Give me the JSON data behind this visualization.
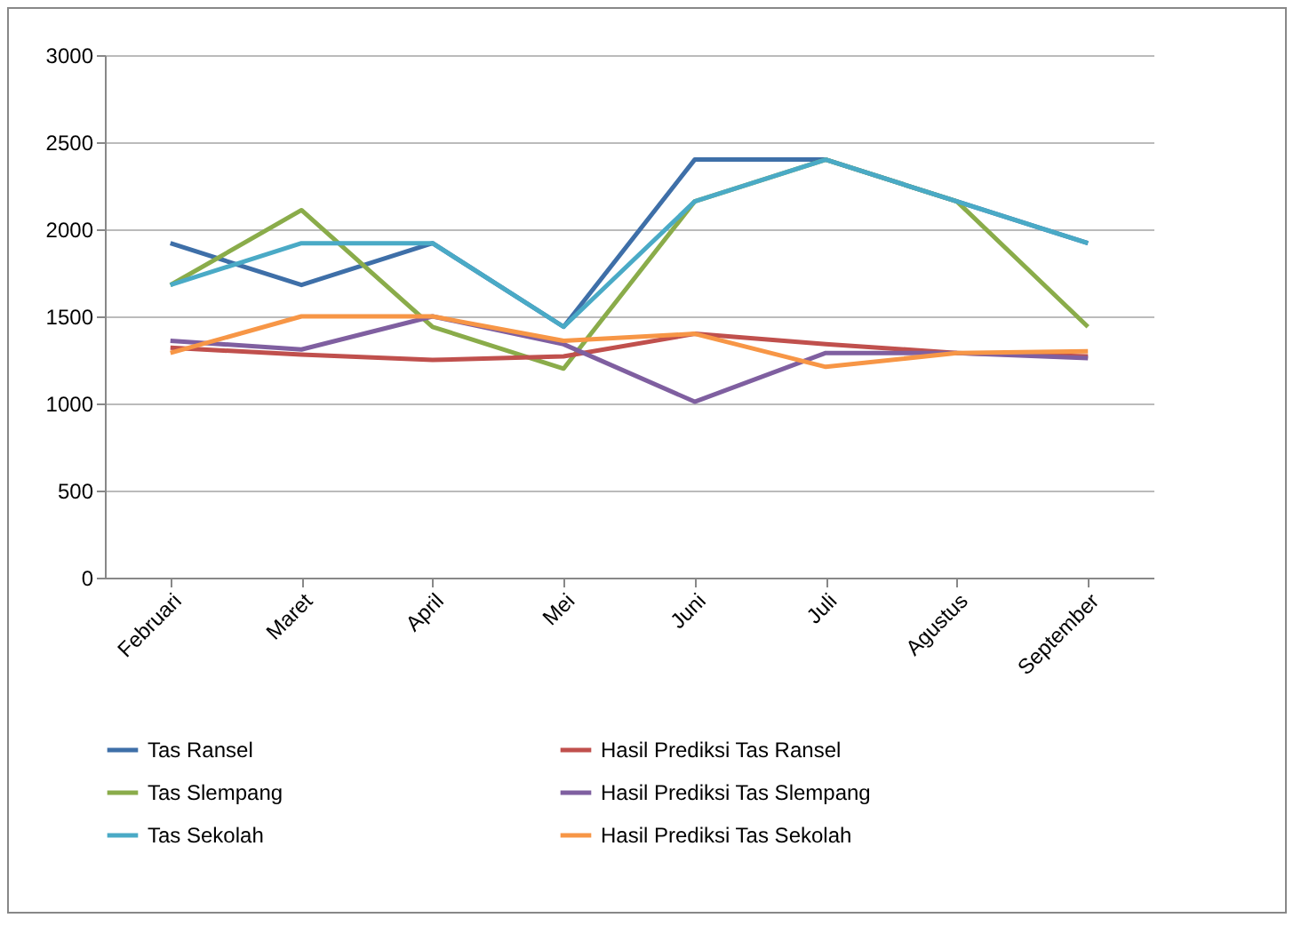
{
  "chart_data": {
    "type": "line",
    "categories": [
      "Februari",
      "Maret",
      "April",
      "Mei",
      "Juni",
      "Juli",
      "Agustus",
      "September"
    ],
    "series": [
      {
        "name": "Tas Ransel",
        "color": "#3e6fa8",
        "values": [
          1920,
          1680,
          1920,
          1440,
          2400,
          2400,
          2160,
          1920
        ]
      },
      {
        "name": "Tas Slempang",
        "color": "#8aac4a",
        "values": [
          1680,
          2110,
          1440,
          1200,
          2160,
          2400,
          2160,
          1440
        ]
      },
      {
        "name": "Tas Sekolah",
        "color": "#4aaac6",
        "values": [
          1680,
          1920,
          1920,
          1440,
          2160,
          2400,
          2160,
          1920
        ]
      },
      {
        "name": "Hasil Prediksi Tas Ransel",
        "color": "#c0504d",
        "values": [
          1320,
          1280,
          1250,
          1270,
          1400,
          1340,
          1290,
          1270
        ]
      },
      {
        "name": "Hasil Prediksi Tas Slempang",
        "color": "#7f5fa0",
        "values": [
          1360,
          1310,
          1500,
          1340,
          1010,
          1290,
          1290,
          1260
        ]
      },
      {
        "name": "Hasil Prediksi Tas Sekolah",
        "color": "#f79646",
        "values": [
          1290,
          1500,
          1500,
          1360,
          1400,
          1210,
          1290,
          1300
        ]
      }
    ],
    "ylim": [
      0,
      3000
    ],
    "yticks": [
      0,
      500,
      1000,
      1500,
      2000,
      2500,
      3000
    ],
    "grid": "y",
    "legend": "bottom",
    "marker": "none",
    "line_style": "solid"
  }
}
